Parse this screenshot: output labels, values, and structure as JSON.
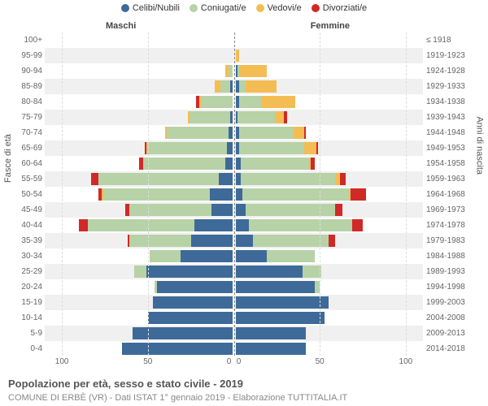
{
  "type": "population-pyramid",
  "colors": {
    "celibi": "#3d6a98",
    "coniugati": "#b7d2a6",
    "vedovi": "#f4bd53",
    "divorziati": "#cf2a27",
    "grid": "#dddddd",
    "center": "#888888",
    "row_alt": "#f0f0f0",
    "text": "#555555"
  },
  "legend": [
    {
      "label": "Celibi/Nubili",
      "colorKey": "celibi"
    },
    {
      "label": "Coniugati/e",
      "colorKey": "coniugati"
    },
    {
      "label": "Vedovi/e",
      "colorKey": "vedovi"
    },
    {
      "label": "Divorziati/e",
      "colorKey": "divorziati"
    }
  ],
  "side_titles": {
    "left": "Maschi",
    "right": "Femmine"
  },
  "axis_titles": {
    "left": "Fasce di età",
    "right": "Anni di nascita"
  },
  "x_ticks": [
    100,
    50,
    0,
    0,
    50,
    100
  ],
  "x_max": 110,
  "caption": "Popolazione per età, sesso e stato civile - 2019",
  "subcaption": "COMUNE DI ERBÈ (VR) - Dati ISTAT 1° gennaio 2019 - Elaborazione TUTTITALIA.IT",
  "rows": [
    {
      "age": "100+",
      "birth": "≤ 1918",
      "m": {
        "c": 0,
        "co": 0,
        "v": 0,
        "d": 0
      },
      "f": {
        "c": 0,
        "co": 0,
        "v": 0,
        "d": 0
      }
    },
    {
      "age": "95-99",
      "birth": "1919-1923",
      "m": {
        "c": 0,
        "co": 0,
        "v": 0,
        "d": 0
      },
      "f": {
        "c": 0,
        "co": 0,
        "v": 2,
        "d": 0
      }
    },
    {
      "age": "90-94",
      "birth": "1924-1928",
      "m": {
        "c": 0,
        "co": 2,
        "v": 2,
        "d": 0
      },
      "f": {
        "c": 1,
        "co": 1,
        "v": 16,
        "d": 0
      }
    },
    {
      "age": "85-89",
      "birth": "1929-1933",
      "m": {
        "c": 1,
        "co": 6,
        "v": 3,
        "d": 0
      },
      "f": {
        "c": 2,
        "co": 4,
        "v": 18,
        "d": 0
      }
    },
    {
      "age": "80-84",
      "birth": "1934-1938",
      "m": {
        "c": 0,
        "co": 18,
        "v": 1,
        "d": 2
      },
      "f": {
        "c": 2,
        "co": 13,
        "v": 20,
        "d": 0
      }
    },
    {
      "age": "75-79",
      "birth": "1939-1943",
      "m": {
        "c": 1,
        "co": 24,
        "v": 1,
        "d": 0
      },
      "f": {
        "c": 1,
        "co": 22,
        "v": 5,
        "d": 2
      }
    },
    {
      "age": "70-74",
      "birth": "1944-1948",
      "m": {
        "c": 2,
        "co": 36,
        "v": 1,
        "d": 0
      },
      "f": {
        "c": 2,
        "co": 32,
        "v": 6,
        "d": 1
      }
    },
    {
      "age": "65-69",
      "birth": "1949-1953",
      "m": {
        "c": 3,
        "co": 46,
        "v": 1,
        "d": 1
      },
      "f": {
        "c": 2,
        "co": 38,
        "v": 7,
        "d": 1
      }
    },
    {
      "age": "60-64",
      "birth": "1954-1958",
      "m": {
        "c": 4,
        "co": 48,
        "v": 0,
        "d": 2
      },
      "f": {
        "c": 3,
        "co": 40,
        "v": 1,
        "d": 2
      }
    },
    {
      "age": "55-59",
      "birth": "1959-1963",
      "m": {
        "c": 8,
        "co": 70,
        "v": 0,
        "d": 4
      },
      "f": {
        "c": 3,
        "co": 55,
        "v": 3,
        "d": 3
      }
    },
    {
      "age": "50-54",
      "birth": "1964-1968",
      "m": {
        "c": 13,
        "co": 62,
        "v": 1,
        "d": 2
      },
      "f": {
        "c": 4,
        "co": 62,
        "v": 1,
        "d": 9
      }
    },
    {
      "age": "45-49",
      "birth": "1969-1973",
      "m": {
        "c": 12,
        "co": 48,
        "v": 0,
        "d": 2
      },
      "f": {
        "c": 6,
        "co": 52,
        "v": 0,
        "d": 4
      }
    },
    {
      "age": "40-44",
      "birth": "1974-1978",
      "m": {
        "c": 22,
        "co": 62,
        "v": 0,
        "d": 5
      },
      "f": {
        "c": 8,
        "co": 60,
        "v": 0,
        "d": 6
      }
    },
    {
      "age": "35-39",
      "birth": "1979-1983",
      "m": {
        "c": 24,
        "co": 36,
        "v": 0,
        "d": 1
      },
      "f": {
        "c": 10,
        "co": 44,
        "v": 0,
        "d": 4
      }
    },
    {
      "age": "30-34",
      "birth": "1984-1988",
      "m": {
        "c": 30,
        "co": 18,
        "v": 0,
        "d": 0
      },
      "f": {
        "c": 18,
        "co": 28,
        "v": 0,
        "d": 0
      }
    },
    {
      "age": "25-29",
      "birth": "1989-1993",
      "m": {
        "c": 50,
        "co": 7,
        "v": 0,
        "d": 0
      },
      "f": {
        "c": 39,
        "co": 11,
        "v": 0,
        "d": 0
      }
    },
    {
      "age": "20-24",
      "birth": "1994-1998",
      "m": {
        "c": 44,
        "co": 1,
        "v": 0,
        "d": 0
      },
      "f": {
        "c": 46,
        "co": 3,
        "v": 0,
        "d": 0
      }
    },
    {
      "age": "15-19",
      "birth": "1999-2003",
      "m": {
        "c": 46,
        "co": 0,
        "v": 0,
        "d": 0
      },
      "f": {
        "c": 54,
        "co": 0,
        "v": 0,
        "d": 0
      }
    },
    {
      "age": "10-14",
      "birth": "2004-2008",
      "m": {
        "c": 49,
        "co": 0,
        "v": 0,
        "d": 0
      },
      "f": {
        "c": 52,
        "co": 0,
        "v": 0,
        "d": 0
      }
    },
    {
      "age": "5-9",
      "birth": "2009-2013",
      "m": {
        "c": 58,
        "co": 0,
        "v": 0,
        "d": 0
      },
      "f": {
        "c": 41,
        "co": 0,
        "v": 0,
        "d": 0
      }
    },
    {
      "age": "0-4",
      "birth": "2014-2018",
      "m": {
        "c": 64,
        "co": 0,
        "v": 0,
        "d": 0
      },
      "f": {
        "c": 41,
        "co": 0,
        "v": 0,
        "d": 0
      }
    }
  ]
}
